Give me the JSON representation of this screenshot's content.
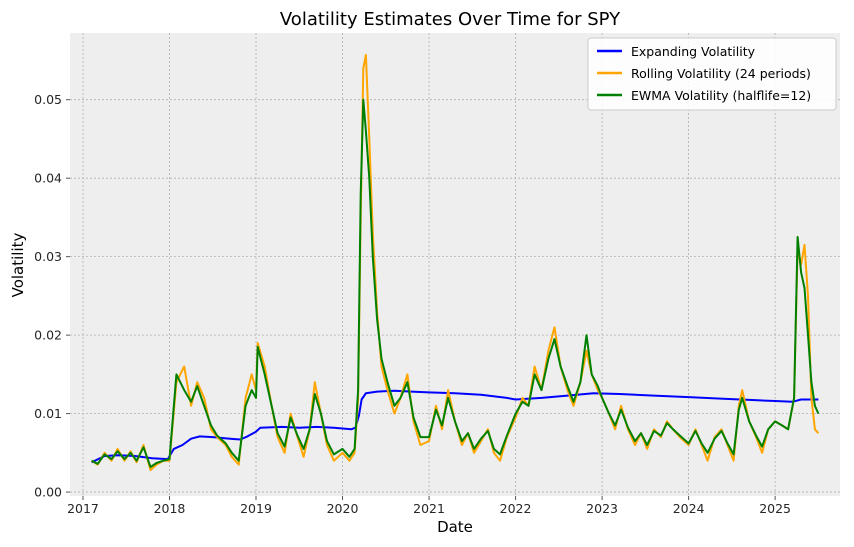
{
  "chart_data": {
    "type": "line",
    "title": "Volatility Estimates Over Time for SPY",
    "xlabel": "Date",
    "ylabel": "Volatility",
    "xlim": [
      2016.85,
      2025.75
    ],
    "ylim": [
      -0.0005,
      0.0585
    ],
    "x_ticks": [
      2017,
      2018,
      2019,
      2020,
      2021,
      2022,
      2023,
      2024,
      2025
    ],
    "x_tick_labels": [
      "2017",
      "2018",
      "2019",
      "2020",
      "2021",
      "2022",
      "2023",
      "2024",
      "2025"
    ],
    "y_ticks": [
      0.0,
      0.01,
      0.02,
      0.03,
      0.04,
      0.05
    ],
    "y_tick_labels": [
      "0.00",
      "0.01",
      "0.02",
      "0.03",
      "0.04",
      "0.05"
    ],
    "grid": true,
    "legend_position": "top-right",
    "series": [
      {
        "name": "Expanding Volatility",
        "color": "#0000ff",
        "points": [
          [
            2017.1,
            0.0038
          ],
          [
            2017.25,
            0.0046
          ],
          [
            2017.4,
            0.0047
          ],
          [
            2017.6,
            0.0046
          ],
          [
            2017.8,
            0.0043
          ],
          [
            2017.98,
            0.0042
          ],
          [
            2018.05,
            0.0055
          ],
          [
            2018.15,
            0.006
          ],
          [
            2018.25,
            0.0068
          ],
          [
            2018.35,
            0.0071
          ],
          [
            2018.5,
            0.007
          ],
          [
            2018.7,
            0.0068
          ],
          [
            2018.82,
            0.0067
          ],
          [
            2018.9,
            0.0071
          ],
          [
            2019.0,
            0.0077
          ],
          [
            2019.05,
            0.0082
          ],
          [
            2019.3,
            0.0083
          ],
          [
            2019.5,
            0.0082
          ],
          [
            2019.7,
            0.0083
          ],
          [
            2019.9,
            0.0082
          ],
          [
            2020.1,
            0.008
          ],
          [
            2020.15,
            0.0082
          ],
          [
            2020.19,
            0.0098
          ],
          [
            2020.22,
            0.0118
          ],
          [
            2020.27,
            0.0126
          ],
          [
            2020.4,
            0.0128
          ],
          [
            2020.6,
            0.0129
          ],
          [
            2020.8,
            0.0128
          ],
          [
            2021.0,
            0.0127
          ],
          [
            2021.3,
            0.0126
          ],
          [
            2021.6,
            0.0124
          ],
          [
            2021.9,
            0.012
          ],
          [
            2022.0,
            0.0118
          ],
          [
            2022.3,
            0.012
          ],
          [
            2022.6,
            0.0123
          ],
          [
            2022.9,
            0.0126
          ],
          [
            2023.2,
            0.0125
          ],
          [
            2023.6,
            0.0123
          ],
          [
            2024.0,
            0.0121
          ],
          [
            2024.4,
            0.0119
          ],
          [
            2024.8,
            0.0117
          ],
          [
            2025.0,
            0.0116
          ],
          [
            2025.2,
            0.0115
          ],
          [
            2025.3,
            0.0118
          ],
          [
            2025.5,
            0.0118
          ]
        ]
      },
      {
        "name": "Rolling Volatility (24 periods)",
        "color": "#ffa500",
        "points": [
          [
            2017.1,
            0.004
          ],
          [
            2017.17,
            0.0035
          ],
          [
            2017.25,
            0.005
          ],
          [
            2017.33,
            0.004
          ],
          [
            2017.4,
            0.0055
          ],
          [
            2017.48,
            0.004
          ],
          [
            2017.55,
            0.0052
          ],
          [
            2017.62,
            0.0038
          ],
          [
            2017.7,
            0.006
          ],
          [
            2017.78,
            0.0028
          ],
          [
            2017.85,
            0.0035
          ],
          [
            2017.93,
            0.004
          ],
          [
            2018.0,
            0.004
          ],
          [
            2018.08,
            0.014
          ],
          [
            2018.17,
            0.016
          ],
          [
            2018.25,
            0.011
          ],
          [
            2018.32,
            0.014
          ],
          [
            2018.4,
            0.012
          ],
          [
            2018.48,
            0.008
          ],
          [
            2018.55,
            0.007
          ],
          [
            2018.65,
            0.006
          ],
          [
            2018.72,
            0.0045
          ],
          [
            2018.8,
            0.0035
          ],
          [
            2018.88,
            0.012
          ],
          [
            2018.95,
            0.015
          ],
          [
            2019.0,
            0.013
          ],
          [
            2019.02,
            0.019
          ],
          [
            2019.1,
            0.016
          ],
          [
            2019.18,
            0.011
          ],
          [
            2019.25,
            0.007
          ],
          [
            2019.33,
            0.005
          ],
          [
            2019.4,
            0.01
          ],
          [
            2019.48,
            0.007
          ],
          [
            2019.55,
            0.0045
          ],
          [
            2019.62,
            0.008
          ],
          [
            2019.68,
            0.014
          ],
          [
            2019.75,
            0.01
          ],
          [
            2019.82,
            0.006
          ],
          [
            2019.9,
            0.004
          ],
          [
            2020.0,
            0.005
          ],
          [
            2020.08,
            0.004
          ],
          [
            2020.14,
            0.005
          ],
          [
            2020.18,
            0.012
          ],
          [
            2020.21,
            0.035
          ],
          [
            2020.24,
            0.054
          ],
          [
            2020.27,
            0.0557
          ],
          [
            2020.31,
            0.045
          ],
          [
            2020.35,
            0.033
          ],
          [
            2020.4,
            0.023
          ],
          [
            2020.45,
            0.016
          ],
          [
            2020.52,
            0.013
          ],
          [
            2020.6,
            0.01
          ],
          [
            2020.67,
            0.012
          ],
          [
            2020.75,
            0.015
          ],
          [
            2020.82,
            0.009
          ],
          [
            2020.9,
            0.006
          ],
          [
            2021.0,
            0.0065
          ],
          [
            2021.08,
            0.011
          ],
          [
            2021.15,
            0.008
          ],
          [
            2021.22,
            0.013
          ],
          [
            2021.3,
            0.009
          ],
          [
            2021.38,
            0.006
          ],
          [
            2021.45,
            0.0075
          ],
          [
            2021.52,
            0.005
          ],
          [
            2021.6,
            0.0065
          ],
          [
            2021.68,
            0.008
          ],
          [
            2021.75,
            0.005
          ],
          [
            2021.82,
            0.004
          ],
          [
            2021.9,
            0.007
          ],
          [
            2022.0,
            0.0095
          ],
          [
            2022.08,
            0.012
          ],
          [
            2022.15,
            0.011
          ],
          [
            2022.22,
            0.016
          ],
          [
            2022.3,
            0.013
          ],
          [
            2022.38,
            0.018
          ],
          [
            2022.45,
            0.021
          ],
          [
            2022.52,
            0.016
          ],
          [
            2022.6,
            0.013
          ],
          [
            2022.67,
            0.011
          ],
          [
            2022.75,
            0.014
          ],
          [
            2022.82,
            0.018
          ],
          [
            2022.88,
            0.015
          ],
          [
            2022.95,
            0.013
          ],
          [
            2023.0,
            0.012
          ],
          [
            2023.08,
            0.01
          ],
          [
            2023.15,
            0.008
          ],
          [
            2023.22,
            0.011
          ],
          [
            2023.3,
            0.008
          ],
          [
            2023.38,
            0.006
          ],
          [
            2023.45,
            0.0075
          ],
          [
            2023.52,
            0.0055
          ],
          [
            2023.6,
            0.008
          ],
          [
            2023.68,
            0.007
          ],
          [
            2023.75,
            0.009
          ],
          [
            2023.82,
            0.008
          ],
          [
            2023.9,
            0.007
          ],
          [
            2024.0,
            0.006
          ],
          [
            2024.08,
            0.008
          ],
          [
            2024.15,
            0.006
          ],
          [
            2024.22,
            0.004
          ],
          [
            2024.3,
            0.007
          ],
          [
            2024.38,
            0.008
          ],
          [
            2024.45,
            0.006
          ],
          [
            2024.52,
            0.004
          ],
          [
            2024.58,
            0.011
          ],
          [
            2024.62,
            0.013
          ],
          [
            2024.7,
            0.009
          ],
          [
            2024.78,
            0.007
          ],
          [
            2024.85,
            0.005
          ],
          [
            2024.92,
            0.008
          ],
          [
            2025.0,
            0.009
          ],
          [
            2025.08,
            0.0085
          ],
          [
            2025.15,
            0.008
          ],
          [
            2025.22,
            0.012
          ],
          [
            2025.26,
            0.031
          ],
          [
            2025.3,
            0.029
          ],
          [
            2025.34,
            0.0315
          ],
          [
            2025.38,
            0.025
          ],
          [
            2025.42,
            0.012
          ],
          [
            2025.46,
            0.008
          ],
          [
            2025.5,
            0.0075
          ]
        ]
      },
      {
        "name": "EWMA Volatility (halflife=12)",
        "color": "#008000",
        "points": [
          [
            2017.1,
            0.004
          ],
          [
            2017.17,
            0.0036
          ],
          [
            2017.25,
            0.0048
          ],
          [
            2017.33,
            0.0042
          ],
          [
            2017.4,
            0.0052
          ],
          [
            2017.48,
            0.0042
          ],
          [
            2017.55,
            0.005
          ],
          [
            2017.62,
            0.004
          ],
          [
            2017.7,
            0.0057
          ],
          [
            2017.78,
            0.0032
          ],
          [
            2017.85,
            0.0037
          ],
          [
            2017.93,
            0.004
          ],
          [
            2018.0,
            0.0042
          ],
          [
            2018.08,
            0.015
          ],
          [
            2018.17,
            0.013
          ],
          [
            2018.25,
            0.0115
          ],
          [
            2018.32,
            0.0135
          ],
          [
            2018.4,
            0.011
          ],
          [
            2018.48,
            0.0085
          ],
          [
            2018.55,
            0.0072
          ],
          [
            2018.65,
            0.0062
          ],
          [
            2018.72,
            0.005
          ],
          [
            2018.8,
            0.004
          ],
          [
            2018.88,
            0.011
          ],
          [
            2018.95,
            0.013
          ],
          [
            2019.0,
            0.012
          ],
          [
            2019.02,
            0.0185
          ],
          [
            2019.1,
            0.015
          ],
          [
            2019.18,
            0.011
          ],
          [
            2019.25,
            0.0075
          ],
          [
            2019.33,
            0.0058
          ],
          [
            2019.4,
            0.0095
          ],
          [
            2019.48,
            0.0072
          ],
          [
            2019.55,
            0.0055
          ],
          [
            2019.62,
            0.008
          ],
          [
            2019.68,
            0.0125
          ],
          [
            2019.75,
            0.01
          ],
          [
            2019.82,
            0.0065
          ],
          [
            2019.9,
            0.0048
          ],
          [
            2020.0,
            0.0055
          ],
          [
            2020.08,
            0.0045
          ],
          [
            2020.14,
            0.0055
          ],
          [
            2020.18,
            0.013
          ],
          [
            2020.21,
            0.038
          ],
          [
            2020.24,
            0.05
          ],
          [
            2020.27,
            0.046
          ],
          [
            2020.31,
            0.04
          ],
          [
            2020.35,
            0.03
          ],
          [
            2020.4,
            0.022
          ],
          [
            2020.45,
            0.017
          ],
          [
            2020.52,
            0.014
          ],
          [
            2020.6,
            0.011
          ],
          [
            2020.67,
            0.012
          ],
          [
            2020.75,
            0.014
          ],
          [
            2020.82,
            0.0095
          ],
          [
            2020.9,
            0.007
          ],
          [
            2021.0,
            0.007
          ],
          [
            2021.08,
            0.0105
          ],
          [
            2021.15,
            0.0085
          ],
          [
            2021.22,
            0.012
          ],
          [
            2021.3,
            0.009
          ],
          [
            2021.38,
            0.0065
          ],
          [
            2021.45,
            0.0075
          ],
          [
            2021.52,
            0.0055
          ],
          [
            2021.6,
            0.0068
          ],
          [
            2021.68,
            0.0078
          ],
          [
            2021.75,
            0.0055
          ],
          [
            2021.82,
            0.0048
          ],
          [
            2021.9,
            0.0072
          ],
          [
            2022.0,
            0.01
          ],
          [
            2022.08,
            0.0115
          ],
          [
            2022.15,
            0.011
          ],
          [
            2022.22,
            0.015
          ],
          [
            2022.3,
            0.013
          ],
          [
            2022.38,
            0.017
          ],
          [
            2022.45,
            0.0195
          ],
          [
            2022.52,
            0.016
          ],
          [
            2022.6,
            0.0135
          ],
          [
            2022.67,
            0.0115
          ],
          [
            2022.75,
            0.014
          ],
          [
            2022.82,
            0.02
          ],
          [
            2022.88,
            0.015
          ],
          [
            2022.95,
            0.0135
          ],
          [
            2023.0,
            0.012
          ],
          [
            2023.08,
            0.01
          ],
          [
            2023.15,
            0.0085
          ],
          [
            2023.22,
            0.0105
          ],
          [
            2023.3,
            0.0082
          ],
          [
            2023.38,
            0.0065
          ],
          [
            2023.45,
            0.0075
          ],
          [
            2023.52,
            0.006
          ],
          [
            2023.6,
            0.0078
          ],
          [
            2023.68,
            0.0072
          ],
          [
            2023.75,
            0.0088
          ],
          [
            2023.82,
            0.008
          ],
          [
            2023.9,
            0.0072
          ],
          [
            2024.0,
            0.0062
          ],
          [
            2024.08,
            0.0078
          ],
          [
            2024.15,
            0.0062
          ],
          [
            2024.22,
            0.005
          ],
          [
            2024.3,
            0.0068
          ],
          [
            2024.38,
            0.0078
          ],
          [
            2024.45,
            0.0062
          ],
          [
            2024.52,
            0.0048
          ],
          [
            2024.58,
            0.0105
          ],
          [
            2024.62,
            0.012
          ],
          [
            2024.7,
            0.009
          ],
          [
            2024.78,
            0.0072
          ],
          [
            2024.85,
            0.0058
          ],
          [
            2024.92,
            0.008
          ],
          [
            2025.0,
            0.009
          ],
          [
            2025.08,
            0.0085
          ],
          [
            2025.15,
            0.008
          ],
          [
            2025.22,
            0.012
          ],
          [
            2025.26,
            0.0325
          ],
          [
            2025.3,
            0.028
          ],
          [
            2025.34,
            0.026
          ],
          [
            2025.38,
            0.02
          ],
          [
            2025.42,
            0.014
          ],
          [
            2025.46,
            0.011
          ],
          [
            2025.5,
            0.01
          ]
        ]
      }
    ]
  }
}
